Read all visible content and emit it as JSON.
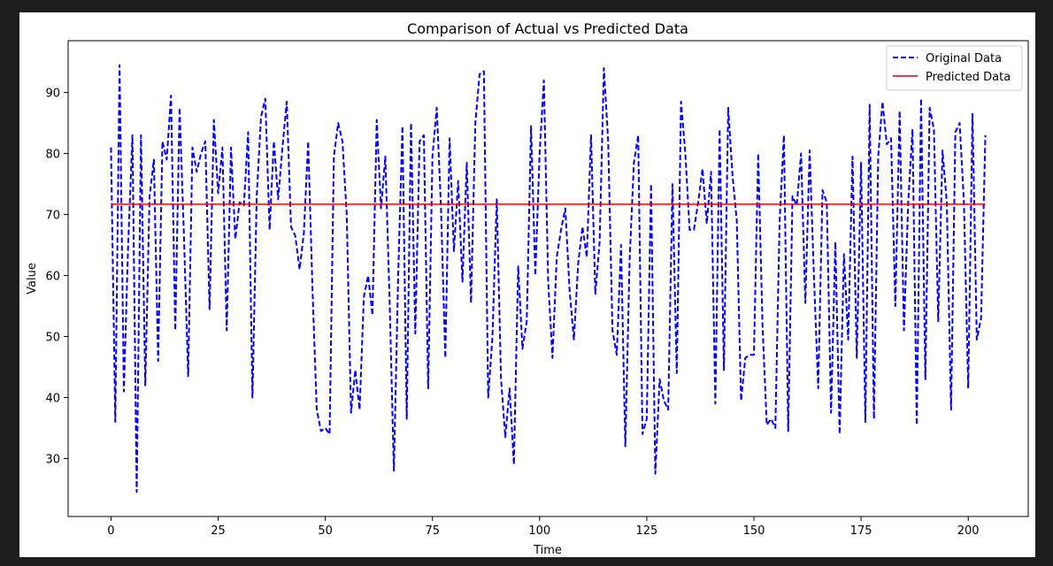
{
  "chart_data": {
    "type": "line",
    "title": "Comparison of Actual vs Predicted Data",
    "xlabel": "Time",
    "ylabel": "Value",
    "xlim": [
      -10,
      214
    ],
    "ylim": [
      20.5,
      98.5
    ],
    "xticks": [
      0,
      25,
      50,
      75,
      100,
      125,
      150,
      175,
      200
    ],
    "yticks": [
      30,
      40,
      50,
      60,
      70,
      80,
      90
    ],
    "grid": false,
    "legend_position": "upper right",
    "series": [
      {
        "name": "Original Data",
        "color": "#0000ff",
        "style": "dashed",
        "values": [
          81,
          36,
          94.5,
          41,
          65,
          83,
          24.5,
          83,
          42,
          73,
          79,
          46,
          82,
          79,
          89.5,
          51,
          87.5,
          67,
          43.5,
          81,
          77,
          80,
          82,
          54.5,
          85.5,
          73.5,
          81,
          51,
          81,
          66,
          72,
          71.5,
          83.5,
          40,
          73,
          86,
          89,
          67.5,
          82,
          72.5,
          81,
          88.5,
          68,
          66.5,
          61,
          67,
          82,
          58,
          38,
          34.5,
          35,
          34,
          79.5,
          85,
          82,
          70,
          37.5,
          44.5,
          38,
          56.5,
          60,
          53.5,
          85.5,
          71,
          79.5,
          56,
          28,
          60,
          84.5,
          36.5,
          85,
          50.5,
          82,
          83,
          41.5,
          79.5,
          87.5,
          71,
          46.5,
          82.5,
          64,
          75.5,
          59,
          78.5,
          55.5,
          85,
          93,
          93.5,
          40,
          50,
          72.5,
          43,
          33.5,
          41.5,
          29,
          61.5,
          48,
          52.5,
          84.5,
          60,
          80,
          92,
          59,
          46.5,
          63,
          67.5,
          71,
          57.5,
          49.5,
          62,
          68,
          63,
          83,
          57,
          65.5,
          94,
          82,
          51,
          47,
          65,
          32,
          62.5,
          78.5,
          83,
          34,
          36.5,
          75,
          27.5,
          43,
          39.5,
          38,
          75,
          44,
          88.5,
          80,
          67.5,
          67.5,
          72,
          77.5,
          68.5,
          77,
          39,
          84,
          44.5,
          87.5,
          76.5,
          69,
          39.5,
          46.5,
          47,
          47,
          80,
          52,
          35.5,
          36.5,
          35,
          69,
          83,
          34.5,
          73,
          71.5,
          80,
          55.5,
          80.5,
          60,
          41.5,
          74,
          72,
          37.5,
          65.5,
          34,
          63.5,
          49.5,
          79.5,
          46.5,
          78.5,
          36,
          88,
          36.5,
          79.5,
          88.5,
          81.5,
          82.5,
          55,
          87,
          51,
          72,
          84,
          35.5,
          89,
          43,
          87.5,
          84,
          52.5,
          80.5,
          72,
          38,
          83.5,
          85,
          72,
          41.5,
          86.5,
          49.5,
          53,
          83
        ]
      },
      {
        "name": "Predicted Data",
        "color": "#ff0000",
        "style": "solid",
        "x_range": [
          0,
          204
        ],
        "constant": 71.7
      }
    ]
  }
}
